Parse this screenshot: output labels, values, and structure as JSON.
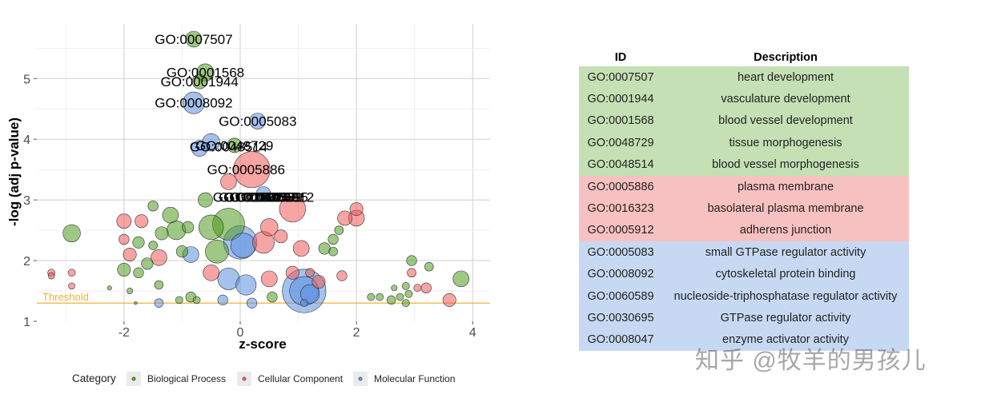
{
  "chart_data": {
    "type": "scatter",
    "subtype": "bubble",
    "xlabel": "z-score",
    "ylabel": "-log (adj p-value)",
    "xlim": [
      -3.5,
      4.3
    ],
    "ylim": [
      1,
      5.9
    ],
    "xticks": [
      -2,
      0,
      2,
      4
    ],
    "yticks": [
      1,
      2,
      3,
      4,
      5
    ],
    "grid": true,
    "threshold": {
      "label": "Threshold",
      "value": 1.3,
      "color": "#f2b134"
    },
    "legend": {
      "title": "Category",
      "placement": "bottom",
      "entries": [
        {
          "name": "Biological Process",
          "color": "#4f9a1f"
        },
        {
          "name": "Cellular Component",
          "color": "#ee5a5a"
        },
        {
          "name": "Molecular Function",
          "color": "#5b8fe0"
        }
      ]
    },
    "labeled_terms": [
      {
        "id": "GO:0007507",
        "x": -0.8,
        "y": 5.65,
        "category": 0
      },
      {
        "id": "GO:0001568",
        "x": -0.6,
        "y": 5.1,
        "category": 0
      },
      {
        "id": "GO:0001944",
        "x": -0.7,
        "y": 4.95,
        "category": 0
      },
      {
        "id": "GO:0008092",
        "x": -0.8,
        "y": 4.6,
        "category": 2
      },
      {
        "id": "GO:0005083",
        "x": 0.3,
        "y": 4.3,
        "category": 2
      },
      {
        "id": "GO:0048729",
        "x": -0.1,
        "y": 3.9,
        "category": 0
      },
      {
        "id": "GO:0048514",
        "x": -0.2,
        "y": 3.88,
        "category": 0
      },
      {
        "id": "GO:0005886",
        "x": 0.1,
        "y": 3.5,
        "category": 1
      },
      {
        "id": "GO:0005912",
        "x": 0.6,
        "y": 3.05,
        "category": 1
      },
      {
        "id": "GO:0016323",
        "x": 0.2,
        "y": 3.05,
        "category": 1
      },
      {
        "id": "GO:0060589",
        "x": 0.4,
        "y": 3.05,
        "category": 2
      },
      {
        "id": "GO:0030695",
        "x": 0.5,
        "y": 3.05,
        "category": 2
      },
      {
        "id": "GO:0008047",
        "x": 0.3,
        "y": 3.05,
        "category": 2
      }
    ],
    "bubbles": [
      {
        "x": -0.8,
        "y": 5.65,
        "r": 0.55,
        "c": 0
      },
      {
        "x": -0.6,
        "y": 5.1,
        "r": 0.6,
        "c": 0
      },
      {
        "x": -0.7,
        "y": 4.95,
        "r": 0.5,
        "c": 0
      },
      {
        "x": -0.8,
        "y": 4.6,
        "r": 0.75,
        "c": 2
      },
      {
        "x": 0.3,
        "y": 4.3,
        "r": 0.55,
        "c": 2
      },
      {
        "x": -0.5,
        "y": 3.95,
        "r": 0.6,
        "c": 2
      },
      {
        "x": -0.7,
        "y": 3.85,
        "r": 0.55,
        "c": 2
      },
      {
        "x": -0.1,
        "y": 3.9,
        "r": 0.5,
        "c": 0
      },
      {
        "x": 0.2,
        "y": 3.5,
        "r": 1.25,
        "c": 1
      },
      {
        "x": -0.2,
        "y": 3.3,
        "r": 0.55,
        "c": 1
      },
      {
        "x": 0.4,
        "y": 3.1,
        "r": 0.5,
        "c": 2
      },
      {
        "x": -0.6,
        "y": 3.0,
        "r": 0.5,
        "c": 0
      },
      {
        "x": 0.9,
        "y": 2.85,
        "r": 0.9,
        "c": 1
      },
      {
        "x": 2.0,
        "y": 2.85,
        "r": 0.45,
        "c": 1
      },
      {
        "x": 2.0,
        "y": 2.7,
        "r": 0.55,
        "c": 1
      },
      {
        "x": 1.8,
        "y": 2.7,
        "r": 0.5,
        "c": 1
      },
      {
        "x": -2.0,
        "y": 2.65,
        "r": 0.5,
        "c": 1
      },
      {
        "x": -1.7,
        "y": 2.65,
        "r": 0.45,
        "c": 1
      },
      {
        "x": -1.2,
        "y": 2.75,
        "r": 0.55,
        "c": 0
      },
      {
        "x": -1.5,
        "y": 2.9,
        "r": 0.35,
        "c": 0
      },
      {
        "x": -1.1,
        "y": 2.5,
        "r": 0.65,
        "c": 0
      },
      {
        "x": -1.35,
        "y": 2.45,
        "r": 0.45,
        "c": 0
      },
      {
        "x": -0.9,
        "y": 2.55,
        "r": 0.4,
        "c": 0
      },
      {
        "x": -2.9,
        "y": 2.45,
        "r": 0.6,
        "c": 0
      },
      {
        "x": -1.75,
        "y": 2.3,
        "r": 0.4,
        "c": 0
      },
      {
        "x": -2.0,
        "y": 2.35,
        "r": 0.35,
        "c": 1
      },
      {
        "x": -1.5,
        "y": 2.25,
        "r": 0.3,
        "c": 0
      },
      {
        "x": -0.5,
        "y": 2.55,
        "r": 0.85,
        "c": 0
      },
      {
        "x": -0.2,
        "y": 2.6,
        "r": 1.1,
        "c": 0
      },
      {
        "x": 0.5,
        "y": 2.55,
        "r": 0.6,
        "c": 1
      },
      {
        "x": 0.7,
        "y": 2.4,
        "r": 0.45,
        "c": 1
      },
      {
        "x": 0.4,
        "y": 2.3,
        "r": 0.75,
        "c": 1
      },
      {
        "x": 0.0,
        "y": 2.3,
        "r": 1.15,
        "c": 2
      },
      {
        "x": 0.05,
        "y": 2.25,
        "r": 0.85,
        "c": 2
      },
      {
        "x": -0.4,
        "y": 2.15,
        "r": 0.8,
        "c": 0
      },
      {
        "x": -0.85,
        "y": 2.1,
        "r": 0.55,
        "c": 2
      },
      {
        "x": -1.0,
        "y": 2.15,
        "r": 0.4,
        "c": 0
      },
      {
        "x": -1.4,
        "y": 2.05,
        "r": 0.55,
        "c": 1
      },
      {
        "x": -1.9,
        "y": 2.1,
        "r": 0.45,
        "c": 1
      },
      {
        "x": -1.6,
        "y": 1.95,
        "r": 0.4,
        "c": 0
      },
      {
        "x": -2.0,
        "y": 1.85,
        "r": 0.45,
        "c": 0
      },
      {
        "x": -1.75,
        "y": 1.8,
        "r": 0.35,
        "c": 0
      },
      {
        "x": 1.05,
        "y": 2.2,
        "r": 0.55,
        "c": 1
      },
      {
        "x": 1.45,
        "y": 2.2,
        "r": 0.4,
        "c": 0
      },
      {
        "x": 1.6,
        "y": 2.35,
        "r": 0.35,
        "c": 0
      },
      {
        "x": 1.7,
        "y": 2.5,
        "r": 0.3,
        "c": 0
      },
      {
        "x": 1.6,
        "y": 2.15,
        "r": 0.3,
        "c": 0
      },
      {
        "x": -0.5,
        "y": 1.8,
        "r": 0.55,
        "c": 1
      },
      {
        "x": -0.2,
        "y": 1.7,
        "r": 0.75,
        "c": 2
      },
      {
        "x": 0.1,
        "y": 1.6,
        "r": 0.7,
        "c": 2
      },
      {
        "x": 0.5,
        "y": 1.7,
        "r": 0.55,
        "c": 1
      },
      {
        "x": 0.9,
        "y": 1.8,
        "r": 0.45,
        "c": 1
      },
      {
        "x": 1.35,
        "y": 1.65,
        "r": 0.45,
        "c": 1
      },
      {
        "x": 1.75,
        "y": 1.75,
        "r": 0.35,
        "c": 1
      },
      {
        "x": 1.1,
        "y": 1.5,
        "r": 1.5,
        "c": 2
      },
      {
        "x": 1.1,
        "y": 1.5,
        "r": 1.0,
        "c": 2
      },
      {
        "x": 1.2,
        "y": 1.45,
        "r": 0.65,
        "c": 2
      },
      {
        "x": 1.1,
        "y": 1.3,
        "r": 0.25,
        "c": 2
      },
      {
        "x": 0.55,
        "y": 1.4,
        "r": 0.35,
        "c": 0
      },
      {
        "x": 0.2,
        "y": 1.3,
        "r": 0.35,
        "c": 2
      },
      {
        "x": -0.3,
        "y": 1.35,
        "r": 0.35,
        "c": 2
      },
      {
        "x": -0.85,
        "y": 1.4,
        "r": 0.35,
        "c": 0
      },
      {
        "x": -0.75,
        "y": 1.35,
        "r": 0.25,
        "c": 0
      },
      {
        "x": -1.05,
        "y": 1.35,
        "r": 0.25,
        "c": 0
      },
      {
        "x": -1.4,
        "y": 1.6,
        "r": 0.3,
        "c": 0
      },
      {
        "x": -1.4,
        "y": 1.3,
        "r": 0.3,
        "c": 2
      },
      {
        "x": -1.9,
        "y": 1.5,
        "r": 0.2,
        "c": 0
      },
      {
        "x": -2.25,
        "y": 1.55,
        "r": 0.15,
        "c": 0
      },
      {
        "x": -1.8,
        "y": 1.3,
        "r": 0.1,
        "c": 0
      },
      {
        "x": -3.25,
        "y": 1.8,
        "r": 0.25,
        "c": 1
      },
      {
        "x": -2.9,
        "y": 1.8,
        "r": 0.25,
        "c": 1
      },
      {
        "x": -3.25,
        "y": 1.75,
        "r": 0.22,
        "c": 1
      },
      {
        "x": -2.9,
        "y": 1.58,
        "r": 0.22,
        "c": 1
      },
      {
        "x": 2.25,
        "y": 1.4,
        "r": 0.25,
        "c": 0
      },
      {
        "x": 2.4,
        "y": 1.4,
        "r": 0.25,
        "c": 0
      },
      {
        "x": 2.6,
        "y": 1.35,
        "r": 0.3,
        "c": 0
      },
      {
        "x": 2.75,
        "y": 1.4,
        "r": 0.25,
        "c": 0
      },
      {
        "x": 2.65,
        "y": 1.55,
        "r": 0.2,
        "c": 0
      },
      {
        "x": 2.9,
        "y": 1.45,
        "r": 0.25,
        "c": 0
      },
      {
        "x": 2.85,
        "y": 1.3,
        "r": 0.25,
        "c": 0
      },
      {
        "x": 2.85,
        "y": 1.58,
        "r": 0.25,
        "c": 0
      },
      {
        "x": 3.05,
        "y": 1.55,
        "r": 0.25,
        "c": 1
      },
      {
        "x": 2.95,
        "y": 1.8,
        "r": 0.3,
        "c": 1
      },
      {
        "x": 2.95,
        "y": 2.0,
        "r": 0.35,
        "c": 0
      },
      {
        "x": 3.25,
        "y": 1.9,
        "r": 0.3,
        "c": 0
      },
      {
        "x": 3.2,
        "y": 1.55,
        "r": 0.35,
        "c": 1
      },
      {
        "x": 3.8,
        "y": 1.7,
        "r": 0.55,
        "c": 0
      },
      {
        "x": 3.6,
        "y": 1.35,
        "r": 0.45,
        "c": 1
      },
      {
        "x": 1.2,
        "y": 1.8,
        "r": 0.3,
        "c": 1
      }
    ]
  },
  "table": {
    "headers": {
      "id": "ID",
      "description": "Description"
    },
    "rows": [
      {
        "id": "GO:0007507",
        "description": "heart development",
        "category": 0
      },
      {
        "id": "GO:0001944",
        "description": "vasculature development",
        "category": 0
      },
      {
        "id": "GO:0001568",
        "description": "blood vessel development",
        "category": 0
      },
      {
        "id": "GO:0048729",
        "description": "tissue morphogenesis",
        "category": 0
      },
      {
        "id": "GO:0048514",
        "description": "blood vessel morphogenesis",
        "category": 0
      },
      {
        "id": "GO:0005886",
        "description": "plasma membrane",
        "category": 1
      },
      {
        "id": "GO:0016323",
        "description": "basolateral plasma membrane",
        "category": 1
      },
      {
        "id": "GO:0005912",
        "description": "adherens junction",
        "category": 1
      },
      {
        "id": "GO:0005083",
        "description": "small GTPase regulator activity",
        "category": 2
      },
      {
        "id": "GO:0008092",
        "description": "cytoskeletal protein binding",
        "category": 2
      },
      {
        "id": "GO:0060589",
        "description": "nucleoside-triphosphatase regulator activity",
        "category": 2
      },
      {
        "id": "GO:0030695",
        "description": "GTPase regulator activity",
        "category": 2
      },
      {
        "id": "GO:0008047",
        "description": "enzyme activator activity",
        "category": 2
      }
    ],
    "row_colors": [
      "#c5e0b4",
      "#f8c1c1",
      "#c7d9f2"
    ]
  },
  "watermark": "知乎 @牧羊的男孩儿"
}
